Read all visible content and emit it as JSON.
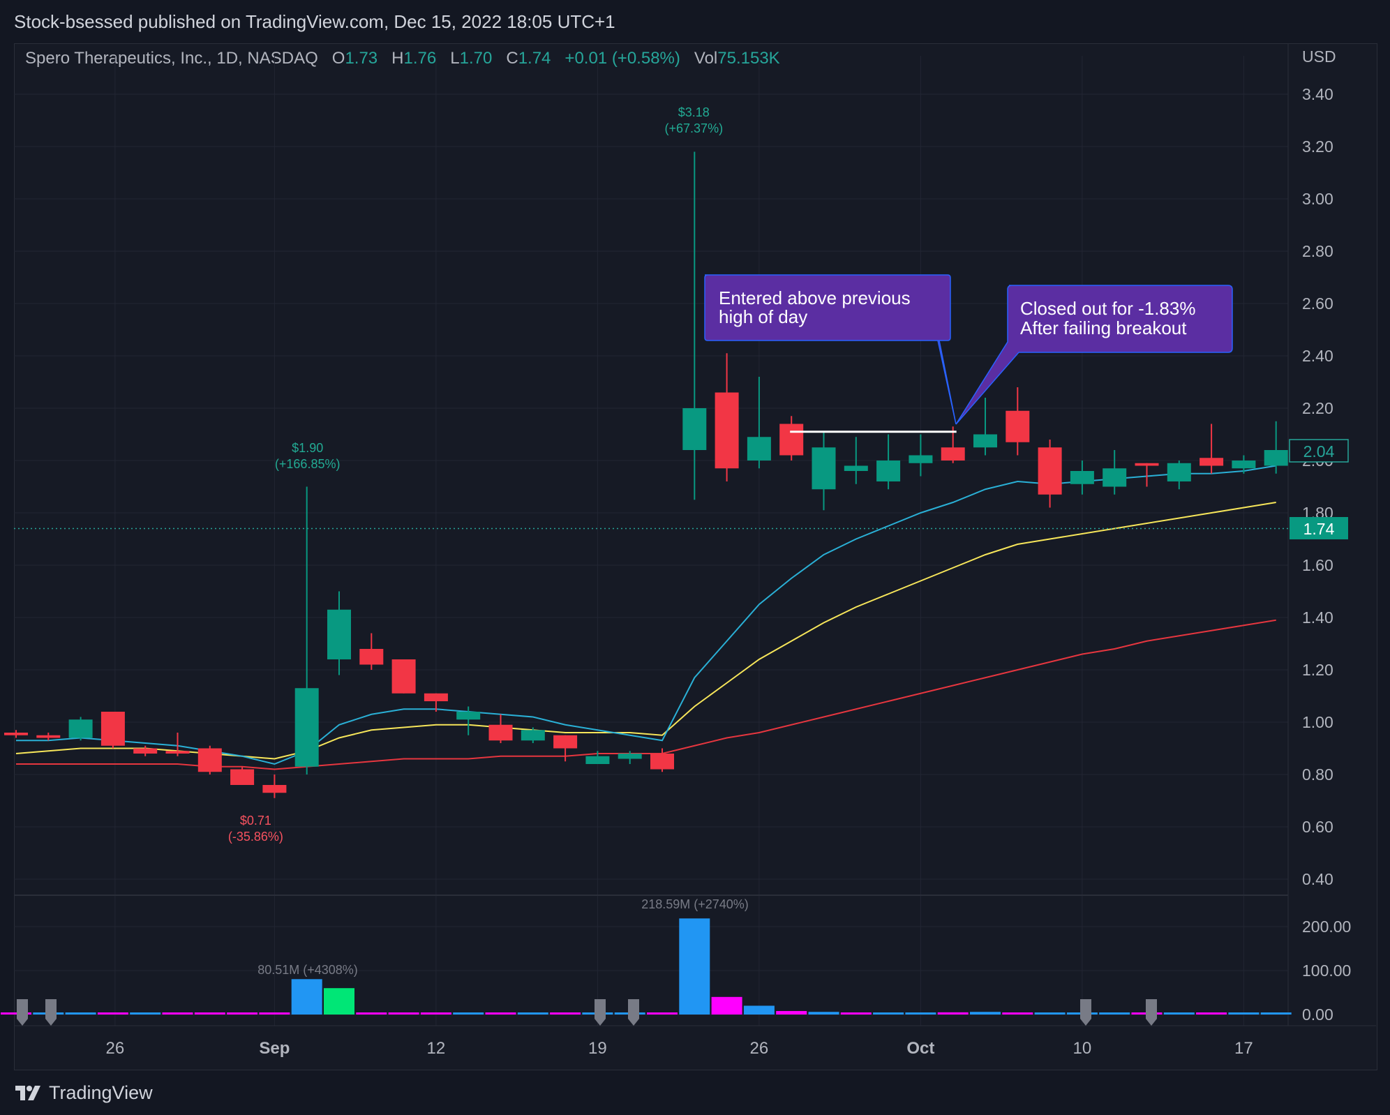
{
  "header": {
    "publisher": "Stock-bsessed published on TradingView.com, Dec 15, 2022 18:05 UTC+1"
  },
  "legend": {
    "symbol": "Spero Therapeutics, Inc., 1D, NASDAQ",
    "open_label": "O",
    "open": "1.73",
    "high_label": "H",
    "high": "1.76",
    "low_label": "L",
    "low": "1.70",
    "close_label": "C",
    "close": "1.74",
    "change": "+0.01 (+0.58%)",
    "vol_label": "Vol",
    "vol": "75.153K"
  },
  "footer": {
    "brand": "TradingView"
  },
  "colors": {
    "up": "#089981",
    "down": "#f23645",
    "ema_fast": "#2ab0d6",
    "ema_mid": "#f7e65a",
    "ema_slow": "#e6363f",
    "callout": "#5b2ea2",
    "callout_border": "#2962ff"
  },
  "chart_data": {
    "type": "candlestick",
    "currency": "USD",
    "price_ticks": [
      "3.40",
      "3.20",
      "3.00",
      "2.80",
      "2.60",
      "2.40",
      "2.20",
      "2.00",
      "1.80",
      "1.60",
      "1.40",
      "1.20",
      "1.00",
      "0.80",
      "0.60",
      "0.40"
    ],
    "price_range": [
      0.35,
      3.45
    ],
    "volume_ticks": [
      "200.00",
      "100.00",
      "0.00"
    ],
    "volume_range": [
      0,
      240
    ],
    "x_labels": [
      {
        "idx": 3,
        "label": "26",
        "bold": false
      },
      {
        "idx": 8,
        "label": "Sep",
        "bold": true
      },
      {
        "idx": 13,
        "label": "12",
        "bold": false
      },
      {
        "idx": 18,
        "label": "19",
        "bold": false
      },
      {
        "idx": 23,
        "label": "26",
        "bold": false
      },
      {
        "idx": 28,
        "label": "Oct",
        "bold": true
      },
      {
        "idx": 33,
        "label": "10",
        "bold": false
      },
      {
        "idx": 38,
        "label": "17",
        "bold": false
      }
    ],
    "candles": [
      {
        "o": 0.96,
        "h": 0.97,
        "l": 0.94,
        "c": 0.95
      },
      {
        "o": 0.95,
        "h": 0.96,
        "l": 0.93,
        "c": 0.94
      },
      {
        "o": 0.94,
        "h": 1.02,
        "l": 0.93,
        "c": 1.01
      },
      {
        "o": 1.04,
        "h": 1.04,
        "l": 0.9,
        "c": 0.91
      },
      {
        "o": 0.9,
        "h": 0.91,
        "l": 0.87,
        "c": 0.88
      },
      {
        "o": 0.89,
        "h": 0.96,
        "l": 0.87,
        "c": 0.88
      },
      {
        "o": 0.9,
        "h": 0.91,
        "l": 0.8,
        "c": 0.81
      },
      {
        "o": 0.82,
        "h": 0.83,
        "l": 0.76,
        "c": 0.76
      },
      {
        "o": 0.76,
        "h": 0.8,
        "l": 0.71,
        "c": 0.73
      },
      {
        "o": 0.83,
        "h": 1.9,
        "l": 0.8,
        "c": 1.13
      },
      {
        "o": 1.24,
        "h": 1.5,
        "l": 1.18,
        "c": 1.43
      },
      {
        "o": 1.28,
        "h": 1.34,
        "l": 1.2,
        "c": 1.22
      },
      {
        "o": 1.24,
        "h": 1.24,
        "l": 1.11,
        "c": 1.11
      },
      {
        "o": 1.11,
        "h": 1.11,
        "l": 1.04,
        "c": 1.08
      },
      {
        "o": 1.01,
        "h": 1.06,
        "l": 0.95,
        "c": 1.04
      },
      {
        "o": 0.99,
        "h": 1.03,
        "l": 0.92,
        "c": 0.93
      },
      {
        "o": 0.93,
        "h": 0.98,
        "l": 0.92,
        "c": 0.97
      },
      {
        "o": 0.95,
        "h": 0.95,
        "l": 0.85,
        "c": 0.9
      },
      {
        "o": 0.84,
        "h": 0.89,
        "l": 0.84,
        "c": 0.87
      },
      {
        "o": 0.86,
        "h": 0.89,
        "l": 0.84,
        "c": 0.88
      },
      {
        "o": 0.88,
        "h": 0.9,
        "l": 0.81,
        "c": 0.82
      },
      {
        "o": 2.04,
        "h": 3.18,
        "l": 1.85,
        "c": 2.2
      },
      {
        "o": 2.26,
        "h": 2.41,
        "l": 1.92,
        "c": 1.97
      },
      {
        "o": 2.0,
        "h": 2.32,
        "l": 1.97,
        "c": 2.09
      },
      {
        "o": 2.14,
        "h": 2.17,
        "l": 2.0,
        "c": 2.02
      },
      {
        "o": 1.89,
        "h": 2.11,
        "l": 1.81,
        "c": 2.05
      },
      {
        "o": 1.96,
        "h": 2.09,
        "l": 1.91,
        "c": 1.98
      },
      {
        "o": 1.92,
        "h": 2.1,
        "l": 1.89,
        "c": 2.0
      },
      {
        "o": 1.99,
        "h": 2.1,
        "l": 1.94,
        "c": 2.02
      },
      {
        "o": 2.05,
        "h": 2.13,
        "l": 1.99,
        "c": 2.0
      },
      {
        "o": 2.05,
        "h": 2.24,
        "l": 2.02,
        "c": 2.1
      },
      {
        "o": 2.19,
        "h": 2.28,
        "l": 2.02,
        "c": 2.07
      },
      {
        "o": 2.05,
        "h": 2.08,
        "l": 1.82,
        "c": 1.87
      },
      {
        "o": 1.91,
        "h": 2.0,
        "l": 1.87,
        "c": 1.96
      },
      {
        "o": 1.9,
        "h": 2.04,
        "l": 1.87,
        "c": 1.97
      },
      {
        "o": 1.99,
        "h": 1.99,
        "l": 1.9,
        "c": 1.98
      },
      {
        "o": 1.92,
        "h": 2.0,
        "l": 1.89,
        "c": 1.99
      },
      {
        "o": 2.01,
        "h": 2.14,
        "l": 1.95,
        "c": 1.98
      },
      {
        "o": 1.97,
        "h": 2.02,
        "l": 1.95,
        "c": 2.0
      },
      {
        "o": 1.98,
        "h": 2.15,
        "l": 1.95,
        "c": 2.04
      }
    ],
    "volume": [
      0.4,
      0.3,
      0.4,
      0.5,
      0.3,
      0.3,
      0.4,
      0.4,
      0.4,
      80.51,
      60,
      3,
      2,
      1.5,
      1.2,
      1.2,
      1,
      1,
      1,
      1,
      1,
      218.59,
      40,
      20,
      8,
      6,
      4,
      3,
      3,
      5,
      6,
      4,
      4,
      3,
      2,
      2,
      2,
      2,
      2,
      2
    ],
    "volume_colors": [
      "#ff00ff",
      "#2196f3",
      "#2196f3",
      "#ff00ff",
      "#2196f3",
      "#ff00ff",
      "#ff00ff",
      "#ff00ff",
      "#ff00ff",
      "#2196f3",
      "#00e676",
      "#ff00ff",
      "#ff00ff",
      "#ff00ff",
      "#2196f3",
      "#ff00ff",
      "#2196f3",
      "#ff00ff",
      "#2196f3",
      "#2196f3",
      "#ff00ff",
      "#2196f3",
      "#ff00ff",
      "#2196f3",
      "#ff00ff",
      "#2196f3",
      "#ff00ff",
      "#2196f3",
      "#2196f3",
      "#ff00ff",
      "#2196f3",
      "#ff00ff",
      "#2196f3",
      "#2196f3",
      "#2196f3",
      "#ff00ff",
      "#2196f3",
      "#ff00ff",
      "#2196f3",
      "#2196f3"
    ],
    "ema_fast": [
      0.93,
      0.93,
      0.94,
      0.93,
      0.92,
      0.91,
      0.89,
      0.87,
      0.84,
      0.89,
      0.99,
      1.03,
      1.05,
      1.05,
      1.04,
      1.03,
      1.02,
      0.99,
      0.97,
      0.95,
      0.93,
      1.17,
      1.31,
      1.45,
      1.55,
      1.64,
      1.7,
      1.75,
      1.8,
      1.84,
      1.89,
      1.92,
      1.91,
      1.92,
      1.93,
      1.94,
      1.95,
      1.95,
      1.96,
      1.98
    ],
    "ema_mid": [
      0.88,
      0.89,
      0.9,
      0.9,
      0.9,
      0.89,
      0.88,
      0.87,
      0.86,
      0.89,
      0.94,
      0.97,
      0.98,
      0.99,
      0.99,
      0.98,
      0.97,
      0.96,
      0.96,
      0.96,
      0.95,
      1.06,
      1.15,
      1.24,
      1.31,
      1.38,
      1.44,
      1.49,
      1.54,
      1.59,
      1.64,
      1.68,
      1.7,
      1.72,
      1.74,
      1.76,
      1.78,
      1.8,
      1.82,
      1.84
    ],
    "ema_slow": [
      0.84,
      0.84,
      0.84,
      0.84,
      0.84,
      0.84,
      0.83,
      0.83,
      0.82,
      0.83,
      0.84,
      0.85,
      0.86,
      0.86,
      0.86,
      0.87,
      0.87,
      0.87,
      0.88,
      0.88,
      0.88,
      0.91,
      0.94,
      0.96,
      0.99,
      1.02,
      1.05,
      1.08,
      1.11,
      1.14,
      1.17,
      1.2,
      1.23,
      1.26,
      1.28,
      1.31,
      1.33,
      1.35,
      1.37,
      1.39
    ],
    "annotations": {
      "max_price": "$3.18",
      "max_change": "(+67.37%)",
      "local_high": "$1.90",
      "local_high_change": "(+166.85%)",
      "min_price": "$0.71",
      "min_change": "(-35.86%)",
      "vol_max": "218.59M (+2740%)",
      "vol_local": "80.51M (+4308%)",
      "last_price_label": "1.74",
      "ema_label": "2.04",
      "entry_callout_line1": "Entered above previous",
      "entry_callout_line2": "high of day",
      "exit_callout_line1": "Closed out for -1.83%",
      "exit_callout_line2": "After failing breakout"
    },
    "entry_level": 2.11,
    "entry_from_idx": 24,
    "entry_to_idx": 29
  }
}
